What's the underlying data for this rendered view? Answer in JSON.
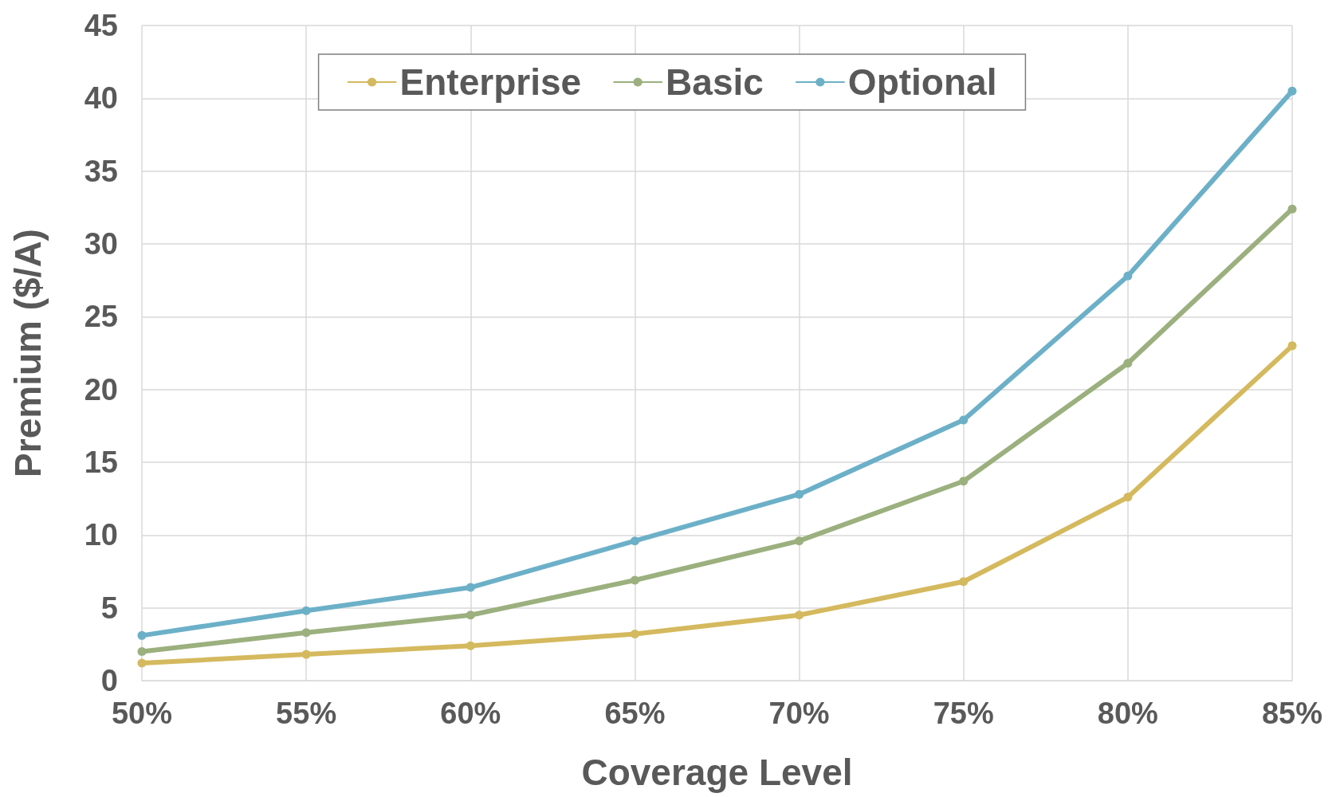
{
  "chart_data": {
    "type": "line",
    "xlabel": "Coverage Level",
    "ylabel": "Premium ($/A)",
    "categories": [
      "50%",
      "55%",
      "60%",
      "65%",
      "70%",
      "75%",
      "80%",
      "85%"
    ],
    "series": [
      {
        "name": "Enterprise",
        "color": "#d4b95e",
        "values": [
          1.2,
          1.8,
          2.4,
          3.2,
          4.5,
          6.8,
          12.6,
          23.0
        ]
      },
      {
        "name": "Basic",
        "color": "#9bb07e",
        "values": [
          2.0,
          3.3,
          4.5,
          6.9,
          9.6,
          13.7,
          21.8,
          32.4
        ]
      },
      {
        "name": "Optional",
        "color": "#6cb0c8",
        "values": [
          3.1,
          4.8,
          6.4,
          9.6,
          12.8,
          17.9,
          27.8,
          40.5
        ]
      }
    ],
    "ylim": [
      0,
      45
    ],
    "yticks": [
      0,
      5,
      10,
      15,
      20,
      25,
      30,
      35,
      40,
      45
    ],
    "grid": true,
    "legend": "top",
    "marker": "circle",
    "line_style": "solid"
  }
}
